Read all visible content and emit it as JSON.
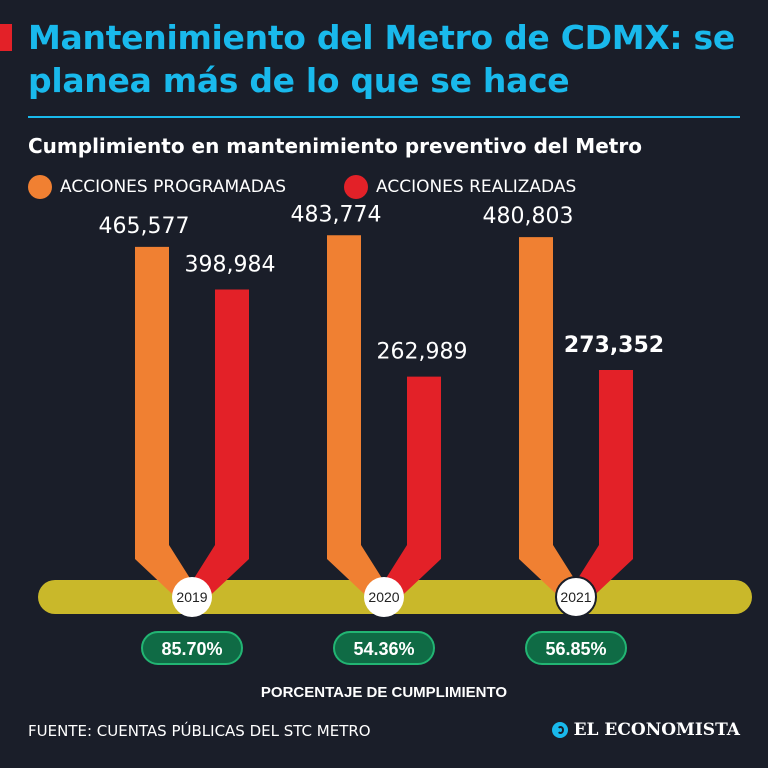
{
  "header": {
    "title": "Mantenimiento del Metro de CDMX: se planea más de lo que se hace",
    "subtitle": "Cumplimiento en mantenimiento preventivo del Metro"
  },
  "colors": {
    "background": "#1a1e29",
    "title": "#19b9ec",
    "programadas": "#f08032",
    "realizadas": "#e32128",
    "track": "#c9b82a",
    "pct_fill": "#0f6b45",
    "pct_border": "#22b573"
  },
  "chart_data": {
    "type": "bar",
    "title": "Cumplimiento en mantenimiento preventivo del Metro",
    "categories": [
      "2019",
      "2020",
      "2021"
    ],
    "series": [
      {
        "name": "ACCIONES PROGRAMADAS",
        "values": [
          465577,
          483774,
          480803
        ],
        "labels": [
          "465,577",
          "483,774",
          "480,803"
        ]
      },
      {
        "name": "ACCIONES REALIZADAS",
        "values": [
          398984,
          262989,
          273352
        ],
        "labels": [
          "398,984",
          "262,989",
          "273,352"
        ]
      }
    ],
    "percentages": [
      "85.70%",
      "54.36%",
      "56.85%"
    ],
    "percent_label": "PORCENTAJE DE CUMPLIMIENTO",
    "legend": [
      "ACCIONES PROGRAMADAS",
      "ACCIONES REALIZADAS"
    ],
    "ylim": [
      0,
      500000
    ]
  },
  "footer": {
    "source": "FUENTE: CUENTAS PÚBLICAS DEL STC METRO",
    "brand": "EL ECONOMISTA"
  }
}
